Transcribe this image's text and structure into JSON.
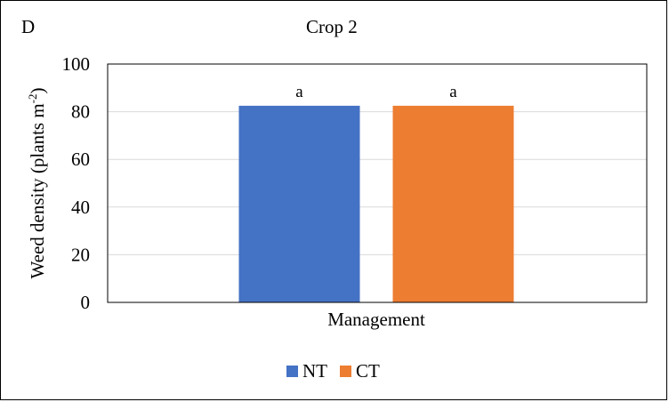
{
  "panel_label": "D",
  "chart_data": {
    "type": "bar",
    "title": "Crop 2",
    "xlabel": "Management",
    "ylabel": "Weed density (plants m",
    "ylabel_sup": "-2",
    "ylabel_close": ")",
    "categories": [
      "Management"
    ],
    "ylim": [
      0,
      100
    ],
    "yticks": [
      0,
      20,
      40,
      60,
      80,
      100
    ],
    "grid": true,
    "legend_position": "bottom",
    "series": [
      {
        "name": "NT",
        "values": [
          82.5
        ],
        "color": "#4472C4",
        "label": "a"
      },
      {
        "name": "CT",
        "values": [
          82.5
        ],
        "color": "#ED7D31",
        "label": "a"
      }
    ]
  }
}
